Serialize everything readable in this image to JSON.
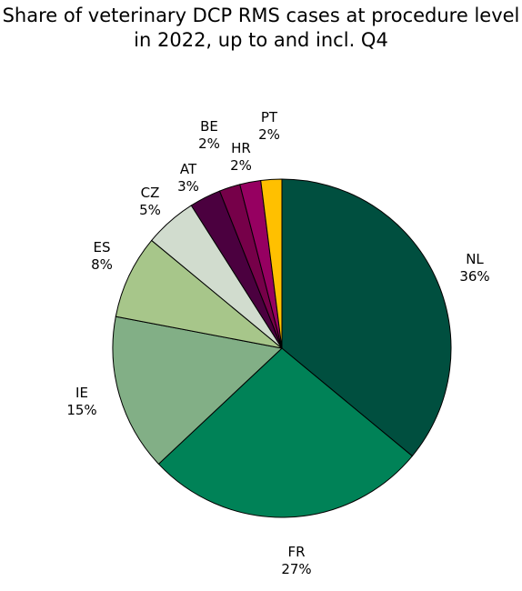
{
  "chart_data": {
    "type": "pie",
    "title_lines": [
      "Share of veterinary DCP RMS cases at procedure level",
      "in 2022, up to and incl. Q4"
    ],
    "slices": [
      {
        "label": "NL",
        "value": 36,
        "display": "36%",
        "color": "#004F3F"
      },
      {
        "label": "FR",
        "value": 27,
        "display": "27%",
        "color": "#008257"
      },
      {
        "label": "IE",
        "value": 15,
        "display": "15%",
        "color": "#82AF86"
      },
      {
        "label": "ES",
        "value": 8,
        "display": "8%",
        "color": "#A7C68A"
      },
      {
        "label": "CZ",
        "value": 5,
        "display": "5%",
        "color": "#D1DCCE"
      },
      {
        "label": "AT",
        "value": 3,
        "display": "3%",
        "color": "#4B003F"
      },
      {
        "label": "BE",
        "value": 2,
        "display": "2%",
        "color": "#760049"
      },
      {
        "label": "HR",
        "value": 2,
        "display": "2%",
        "color": "#960061"
      },
      {
        "label": "PT",
        "value": 2,
        "display": "2%",
        "color": "#FFC000"
      }
    ]
  }
}
